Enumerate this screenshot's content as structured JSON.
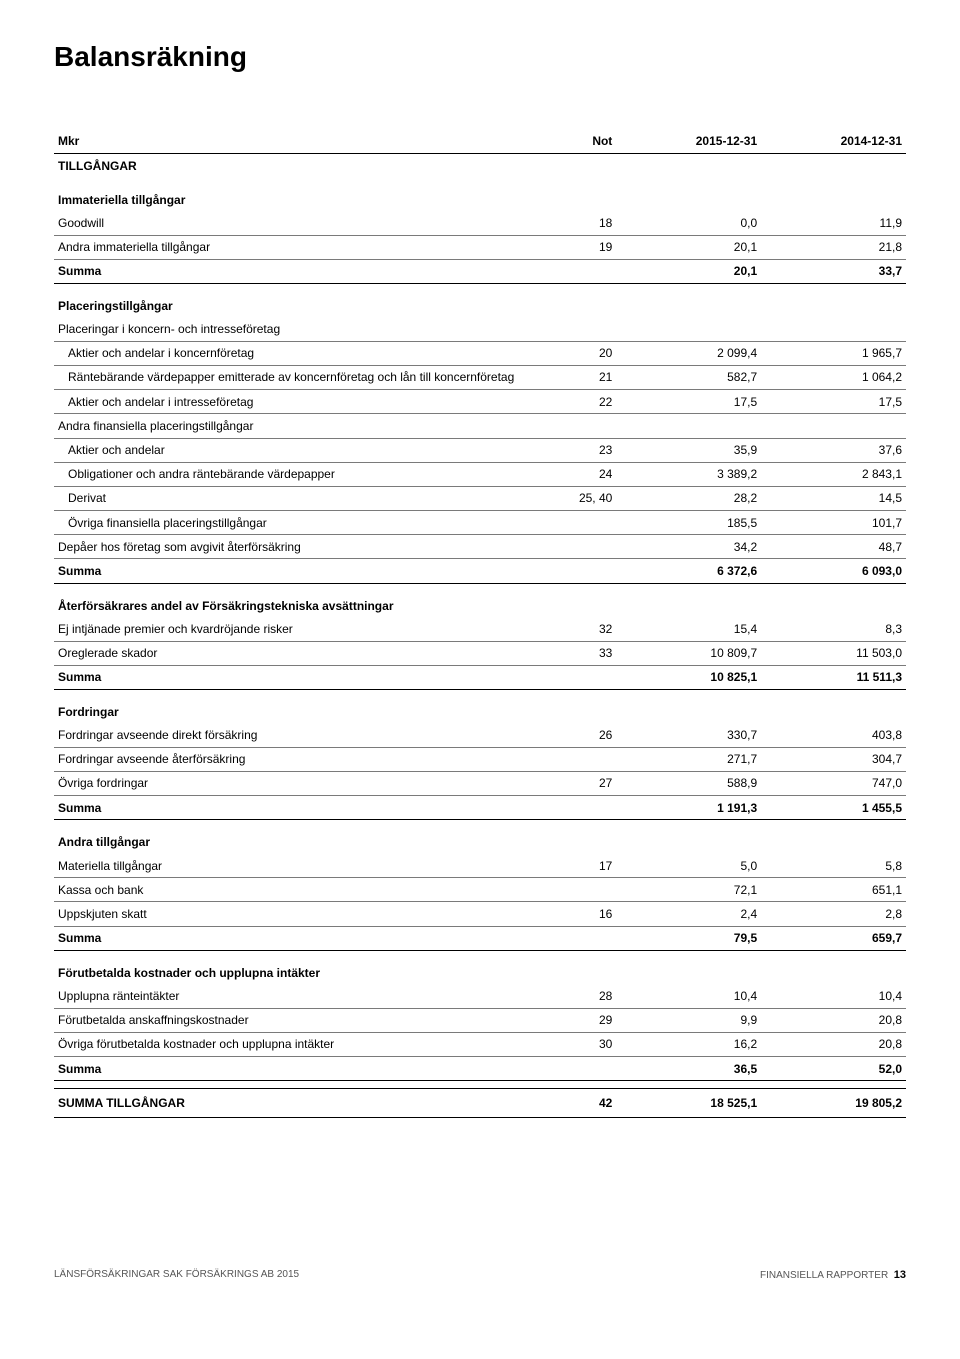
{
  "page_title": "Balansräkning",
  "header": {
    "mkr": "Mkr",
    "not": "Not",
    "c1": "2015-12-31",
    "c2": "2014-12-31"
  },
  "tillgangar_caps": "TILLGÅNGAR",
  "s_immat_head": "Immateriella tillgångar",
  "s_immat": [
    {
      "label": "Goodwill",
      "not": "18",
      "v1": "0,0",
      "v2": "11,9"
    },
    {
      "label": "Andra immateriella tillgångar",
      "not": "19",
      "v1": "20,1",
      "v2": "21,8"
    }
  ],
  "s_immat_sum": {
    "label": "Summa",
    "v1": "20,1",
    "v2": "33,7"
  },
  "s_plac_head": "Placeringstillgångar",
  "s_plac_sub1": "Placeringar i koncern- och intresseföretag",
  "s_plac_sub1_rows": [
    {
      "label": "Aktier och andelar i koncernföretag",
      "not": "20",
      "v1": "2 099,4",
      "v2": "1 965,7"
    },
    {
      "label": "Räntebärande värdepapper emitterade av koncernföretag och lån till koncernföretag",
      "not": "21",
      "v1": "582,7",
      "v2": "1 064,2"
    },
    {
      "label": "Aktier och andelar i intresseföretag",
      "not": "22",
      "v1": "17,5",
      "v2": "17,5"
    }
  ],
  "s_plac_sub2": "Andra finansiella placeringstillgångar",
  "s_plac_sub2_rows": [
    {
      "label": "Aktier och andelar",
      "not": "23",
      "v1": "35,9",
      "v2": "37,6"
    },
    {
      "label": "Obligationer och andra räntebärande värdepapper",
      "not": "24",
      "v1": "3 389,2",
      "v2": "2 843,1"
    },
    {
      "label": "Derivat",
      "not": "25, 40",
      "v1": "28,2",
      "v2": "14,5"
    },
    {
      "label": "Övriga finansiella placeringstillgångar",
      "not": "",
      "v1": "185,5",
      "v2": "101,7"
    }
  ],
  "s_plac_depaer": {
    "label": "Depåer hos företag som avgivit återförsäkring",
    "not": "",
    "v1": "34,2",
    "v2": "48,7"
  },
  "s_plac_sum": {
    "label": "Summa",
    "v1": "6 372,6",
    "v2": "6 093,0"
  },
  "s_aterf_head": "Återförsäkrares andel av Försäkringstekniska avsättningar",
  "s_aterf_rows": [
    {
      "label": "Ej intjänade premier och kvardröjande risker",
      "not": "32",
      "v1": "15,4",
      "v2": "8,3"
    },
    {
      "label": "Oreglerade skador",
      "not": "33",
      "v1": "10 809,7",
      "v2": "11 503,0"
    }
  ],
  "s_aterf_sum": {
    "label": "Summa",
    "v1": "10 825,1",
    "v2": "11 511,3"
  },
  "s_fordr_head": "Fordringar",
  "s_fordr_rows": [
    {
      "label": "Fordringar avseende direkt försäkring",
      "not": "26",
      "v1": "330,7",
      "v2": "403,8"
    },
    {
      "label": "Fordringar avseende återförsäkring",
      "not": "",
      "v1": "271,7",
      "v2": "304,7"
    },
    {
      "label": "Övriga fordringar",
      "not": "27",
      "v1": "588,9",
      "v2": "747,0"
    }
  ],
  "s_fordr_sum": {
    "label": "Summa",
    "v1": "1 191,3",
    "v2": "1 455,5"
  },
  "s_andra_head": "Andra tillgångar",
  "s_andra_rows": [
    {
      "label": "Materiella tillgångar",
      "not": "17",
      "v1": "5,0",
      "v2": "5,8"
    },
    {
      "label": "Kassa och bank",
      "not": "",
      "v1": "72,1",
      "v2": "651,1"
    },
    {
      "label": "Uppskjuten skatt",
      "not": "16",
      "v1": "2,4",
      "v2": "2,8"
    }
  ],
  "s_andra_sum": {
    "label": "Summa",
    "v1": "79,5",
    "v2": "659,7"
  },
  "s_forut_head": "Förutbetalda kostnader och upplupna intäkter",
  "s_forut_rows": [
    {
      "label": "Upplupna ränteintäkter",
      "not": "28",
      "v1": "10,4",
      "v2": "10,4"
    },
    {
      "label": "Förutbetalda anskaffningskostnader",
      "not": "29",
      "v1": "9,9",
      "v2": "20,8"
    },
    {
      "label": "Övriga förutbetalda kostnader och upplupna intäkter",
      "not": "30",
      "v1": "16,2",
      "v2": "20,8"
    }
  ],
  "s_forut_sum": {
    "label": "Summa",
    "v1": "36,5",
    "v2": "52,0"
  },
  "grand_total": {
    "label": "SUMMA TILLGÅNGAR",
    "not": "42",
    "v1": "18 525,1",
    "v2": "19 805,2"
  },
  "footer": {
    "left": "LÄNSFÖRSÄKRINGAR SAK FÖRSÄKRINGS AB 2015",
    "right_text": "FINANSIELLA RAPPORTER",
    "right_page": "13"
  }
}
